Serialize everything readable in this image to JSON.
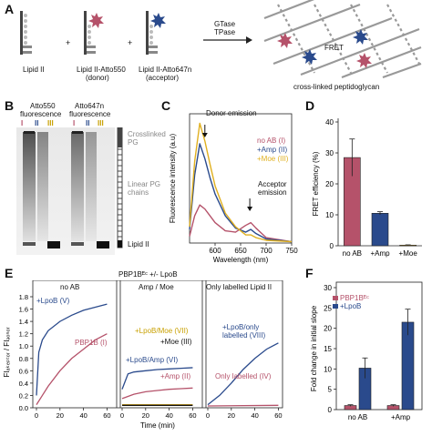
{
  "panelA": {
    "letter": "A",
    "lipid2": "Lipid II",
    "donor_line1": "Lipid II-Atto550",
    "donor_line2": "(donor)",
    "acceptor_line1": "Lipid II-Atto647n",
    "acceptor_line2": "(acceptor)",
    "plus": "+",
    "enzyme1": "GTase",
    "enzyme2": "TPase",
    "fret": "FRET",
    "product": "cross-linked peptidoglycan"
  },
  "panelB": {
    "letter": "B",
    "atto550_1": "Atto550",
    "atto550_2": "fluorescence",
    "atto647_1": "Atto647n",
    "atto647_2": "fluorescence",
    "lanes": [
      "I",
      "II",
      "III",
      "I",
      "II",
      "III"
    ],
    "lane_colors": [
      "#b5526a",
      "#2a4a8c",
      "#c8a000",
      "#b5526a",
      "#2a4a8c",
      "#c8a000"
    ],
    "crosslinked_1": "Crosslinked",
    "crosslinked_2": "PG",
    "linear_1": "Linear PG",
    "linear_2": "chains",
    "lipid2": "Lipid II"
  },
  "panelC": {
    "letter": "C",
    "donor_emission": "Donor emission",
    "acceptor_1": "Acceptor",
    "acceptor_2": "emission",
    "legend": [
      {
        "label": "no AB (I)",
        "color": "#b5526a"
      },
      {
        "label": "+Amp (II)",
        "color": "#2a4a8c"
      },
      {
        "label": "+Moe (III)",
        "color": "#e0b020"
      }
    ]
  },
  "panelD": {
    "letter": "D",
    "bars": [
      {
        "label": "no AB",
        "value": 28.5,
        "err": 6,
        "color": "#b5526a"
      },
      {
        "label": "+Amp",
        "value": 10.5,
        "err": 0.5,
        "color": "#2a4a8c"
      },
      {
        "label": "+Moe",
        "value": 0.2,
        "err": 0.1,
        "color": "#e0b020"
      }
    ]
  },
  "panelE": {
    "letter": "E",
    "title": "PBP1Bᴱᶜ +/- LpoB",
    "sub1": "no AB",
    "sub2": "Amp / Moe",
    "sub3": "Only labelled Lipid II",
    "lbl_lpob": "+LpoB (V)",
    "lbl_pbp": "PBP1B (I)",
    "lbl_moe7": "+LpoB/Moe (VII)",
    "lbl_moe3": "+Moe (III)",
    "lbl_amp6": "+LpoB/Amp (VI)",
    "lbl_amp2": "+Amp (II)",
    "lbl_only8_1": "+LpoB/only",
    "lbl_only8_2": "labelled (VIII)",
    "lbl_only4": "Only labelled (IV)"
  },
  "panelF": {
    "letter": "F",
    "legend1": "PBP1Bᴱᶜ",
    "legend2": "+LpoB",
    "groups": [
      "no AB",
      "+Amp"
    ]
  },
  "chart_data": [
    {
      "type": "line",
      "panel": "C",
      "xlabel": "Wavelength (nm)",
      "ylabel": "Fluorescence intensity (a.u)",
      "xlim": [
        550,
        750
      ],
      "xticks": [
        600,
        650,
        700,
        750
      ],
      "series": [
        {
          "name": "no AB (I)",
          "color": "#b5526a",
          "x": [
            550,
            560,
            570,
            580,
            590,
            600,
            620,
            640,
            660,
            670,
            680,
            700,
            750
          ],
          "y": [
            0.05,
            0.2,
            0.28,
            0.25,
            0.2,
            0.15,
            0.09,
            0.08,
            0.13,
            0.15,
            0.11,
            0.04,
            0.01
          ]
        },
        {
          "name": "+Amp (II)",
          "color": "#2a4a8c",
          "x": [
            550,
            560,
            570,
            580,
            590,
            600,
            620,
            640,
            660,
            670,
            680,
            700,
            750
          ],
          "y": [
            0.1,
            0.5,
            0.73,
            0.62,
            0.48,
            0.36,
            0.2,
            0.11,
            0.08,
            0.1,
            0.07,
            0.03,
            0.01
          ]
        },
        {
          "name": "+Moe (III)",
          "color": "#e0b020",
          "x": [
            550,
            560,
            570,
            580,
            590,
            600,
            620,
            640,
            660,
            670,
            680,
            700,
            750
          ],
          "y": [
            0.12,
            0.6,
            0.88,
            0.75,
            0.58,
            0.42,
            0.22,
            0.12,
            0.06,
            0.06,
            0.04,
            0.02,
            0.01
          ]
        }
      ]
    },
    {
      "type": "bar",
      "panel": "D",
      "categories": [
        "no AB",
        "+Amp",
        "+Moe"
      ],
      "values": [
        28.5,
        10.5,
        0.2
      ],
      "errors": [
        6,
        0.5,
        0.1
      ],
      "ylabel": "FRET efficiency (%)",
      "ylim": [
        0,
        40
      ],
      "yticks": [
        0,
        10,
        20,
        30,
        40
      ]
    },
    {
      "type": "line",
      "panel": "E",
      "xlabel": "Time (min)",
      "ylabel": "FIₐₖₑₚₜₒᵣ / FIₔₒₙₒᵣ",
      "ylim": [
        0,
        1.8
      ],
      "yticks": [
        0,
        0.2,
        0.4,
        0.6,
        0.8,
        1.0,
        1.2,
        1.4,
        1.6,
        1.8
      ],
      "xticks": [
        0,
        20,
        40,
        60
      ],
      "subplots": [
        {
          "name": "no AB",
          "series": [
            {
              "name": "+LpoB (V)",
              "color": "#2a4a8c",
              "x": [
                0,
                2,
                5,
                10,
                20,
                30,
                40,
                50,
                60
              ],
              "y": [
                0.2,
                0.9,
                1.1,
                1.25,
                1.4,
                1.5,
                1.58,
                1.63,
                1.68
              ]
            },
            {
              "name": "PBP1B (I)",
              "color": "#b5526a",
              "x": [
                0,
                5,
                10,
                20,
                30,
                40,
                50,
                60
              ],
              "y": [
                0.05,
                0.2,
                0.35,
                0.6,
                0.8,
                0.95,
                1.1,
                1.2
              ]
            }
          ]
        },
        {
          "name": "Amp / Moe",
          "series": [
            {
              "name": "+LpoB/Moe (VII)",
              "color": "#e0b020",
              "x": [
                0,
                60
              ],
              "y": [
                0.05,
                0.05
              ]
            },
            {
              "name": "+Moe (III)",
              "color": "#111111",
              "x": [
                0,
                60
              ],
              "y": [
                0.04,
                0.04
              ]
            },
            {
              "name": "+LpoB/Amp (VI)",
              "color": "#2a4a8c",
              "x": [
                0,
                5,
                10,
                20,
                30,
                40,
                50,
                60
              ],
              "y": [
                0.3,
                0.55,
                0.58,
                0.6,
                0.62,
                0.63,
                0.64,
                0.65
              ]
            },
            {
              "name": "+Amp (II)",
              "color": "#b5526a",
              "x": [
                0,
                10,
                20,
                30,
                40,
                50,
                60
              ],
              "y": [
                0.15,
                0.22,
                0.26,
                0.28,
                0.3,
                0.31,
                0.32
              ]
            }
          ]
        },
        {
          "name": "Only labelled Lipid II",
          "series": [
            {
              "name": "+LpoB/only labelled (VIII)",
              "color": "#2a4a8c",
              "x": [
                0,
                10,
                20,
                30,
                40,
                50,
                60
              ],
              "y": [
                0.05,
                0.2,
                0.4,
                0.62,
                0.8,
                0.95,
                1.05
              ]
            },
            {
              "name": "Only labelled (IV)",
              "color": "#b5526a",
              "x": [
                0,
                60
              ],
              "y": [
                0.03,
                0.04
              ]
            }
          ]
        }
      ]
    },
    {
      "type": "bar",
      "panel": "F",
      "categories": [
        "no AB",
        "+Amp"
      ],
      "ylabel": "Fold change in initial slope",
      "ylim": [
        0,
        30
      ],
      "yticks": [
        0,
        5,
        10,
        15,
        20,
        25,
        30
      ],
      "series": [
        {
          "name": "PBP1Bᴱᶜ",
          "color": "#b5526a",
          "values": [
            1,
            1
          ],
          "errors": [
            0.2,
            0.2
          ]
        },
        {
          "name": "+LpoB",
          "color": "#2a4a8c",
          "values": [
            10.2,
            21.5
          ],
          "errors": [
            2.5,
            3.2
          ]
        }
      ]
    }
  ]
}
